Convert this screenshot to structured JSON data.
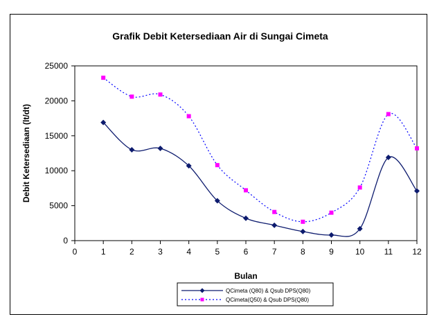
{
  "chart_data": {
    "type": "line",
    "title": "Grafik Debit Ketersediaan Air di Sungai Cimeta",
    "xlabel": "Bulan",
    "ylabel": "Debit Ketersediaan (lt/dt)",
    "xlim": [
      0,
      12
    ],
    "ylim": [
      0,
      25000
    ],
    "x_ticks": [
      "0",
      "1",
      "2",
      "3",
      "4",
      "5",
      "6",
      "7",
      "8",
      "9",
      "10",
      "11",
      "12"
    ],
    "y_ticks": [
      "0",
      "5000",
      "10000",
      "15000",
      "20000",
      "25000"
    ],
    "x": [
      1,
      2,
      3,
      4,
      5,
      6,
      7,
      8,
      9,
      10,
      11,
      12
    ],
    "series": [
      {
        "name": "QCimeta (Q80) & Qsub DPS(Q80)",
        "values": [
          16900,
          13000,
          13200,
          10700,
          5700,
          3200,
          2200,
          1300,
          800,
          1700,
          11900,
          7100
        ],
        "color": "#0d1b6e",
        "style": "solid",
        "marker": "diamond"
      },
      {
        "name": "QCimeta(Q50) & Qsub DPS(Q80)",
        "values": [
          23300,
          20600,
          20900,
          17800,
          10800,
          7200,
          4100,
          2700,
          4000,
          7600,
          18100,
          13200
        ],
        "color": "#0000ff",
        "marker_color": "#ff00ff",
        "style": "dotted",
        "marker": "square"
      }
    ],
    "grid": false,
    "legend_position": "bottom"
  }
}
